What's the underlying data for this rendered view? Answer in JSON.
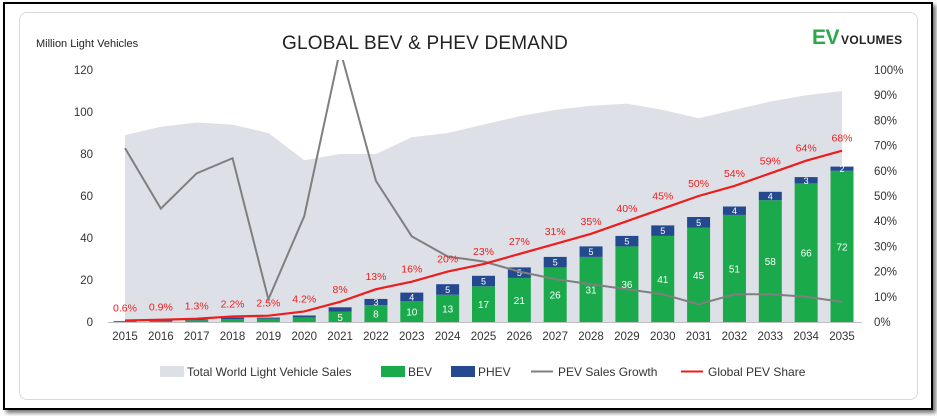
{
  "chart_data": {
    "type": "bar",
    "title": "GLOBAL BEV & PHEV DEMAND",
    "ylabel": "Million Light Vehicles",
    "logo": {
      "ev": "EV",
      "volumes": "VOLUMES"
    },
    "categories": [
      "2015",
      "2016",
      "2017",
      "2018",
      "2019",
      "2020",
      "2021",
      "2022",
      "2023",
      "2024",
      "2025",
      "2026",
      "2027",
      "2028",
      "2029",
      "2030",
      "2031",
      "2032",
      "2033",
      "2034",
      "2035"
    ],
    "ylim": [
      0,
      120
    ],
    "y_ticks": [
      "0",
      "20",
      "40",
      "60",
      "80",
      "100",
      "120"
    ],
    "y2lim": [
      0,
      100
    ],
    "y2_ticks": [
      "0%",
      "10%",
      "20%",
      "30%",
      "40%",
      "50%",
      "60%",
      "70%",
      "80%",
      "90%",
      "100%"
    ],
    "series": [
      {
        "name": "Total World Light Vehicle Sales",
        "type": "area",
        "color": "#dde1e7",
        "values": [
          89,
          93,
          95,
          94,
          90,
          77,
          80,
          80,
          88,
          90,
          94,
          98,
          101,
          103,
          104,
          101,
          97,
          101,
          105,
          108,
          110
        ]
      },
      {
        "name": "BEV",
        "type": "bar",
        "color": "#1aaa4c",
        "values": [
          0.3,
          0.5,
          0.8,
          1.4,
          1.6,
          2.2,
          5,
          8,
          10,
          13,
          17,
          21,
          26,
          31,
          36,
          41,
          45,
          51,
          58,
          66,
          72
        ]
      },
      {
        "name": "PHEV",
        "type": "bar",
        "color": "#24498f",
        "values": [
          0.2,
          0.3,
          0.4,
          0.7,
          0.5,
          0.9,
          2,
          3,
          4,
          5,
          5,
          5,
          5,
          5,
          5,
          5,
          5,
          4,
          4,
          3,
          2
        ]
      },
      {
        "name": "PEV Sales Growth",
        "type": "line",
        "axis": "secondary",
        "color": "#7f7f7f",
        "values": [
          69,
          45,
          59,
          65,
          9,
          42,
          108,
          56,
          34,
          26,
          24,
          20,
          17,
          15,
          13,
          11,
          7,
          11,
          11,
          10,
          8
        ]
      },
      {
        "name": "Global PEV Share",
        "type": "line",
        "axis": "secondary",
        "color": "#ee1c1c",
        "values": [
          0.6,
          0.9,
          1.3,
          2.2,
          2.5,
          4.2,
          8,
          13,
          16,
          20,
          23,
          27,
          31,
          35,
          40,
          45,
          50,
          54,
          59,
          64,
          68
        ],
        "labels": [
          "0.6%",
          "0.9%",
          "1.3%",
          "2.2%",
          "2.5%",
          "4.2%",
          "8%",
          "13%",
          "16%",
          "20%",
          "23%",
          "27%",
          "31%",
          "35%",
          "40%",
          "45%",
          "50%",
          "54%",
          "59%",
          "64%",
          "68%"
        ]
      }
    ],
    "bev_labels": [
      "",
      "",
      "",
      "",
      "",
      "",
      "5",
      "8",
      "10",
      "13",
      "17",
      "21",
      "26",
      "31",
      "36",
      "41",
      "45",
      "51",
      "58",
      "66",
      "72"
    ],
    "phev_labels": [
      "",
      "",
      "",
      "",
      "",
      "",
      "",
      "3",
      "4",
      "5",
      "5",
      "5",
      "5",
      "5",
      "5",
      "5",
      "5",
      "4",
      "4",
      "3",
      "2"
    ],
    "legend_position": "bottom"
  }
}
